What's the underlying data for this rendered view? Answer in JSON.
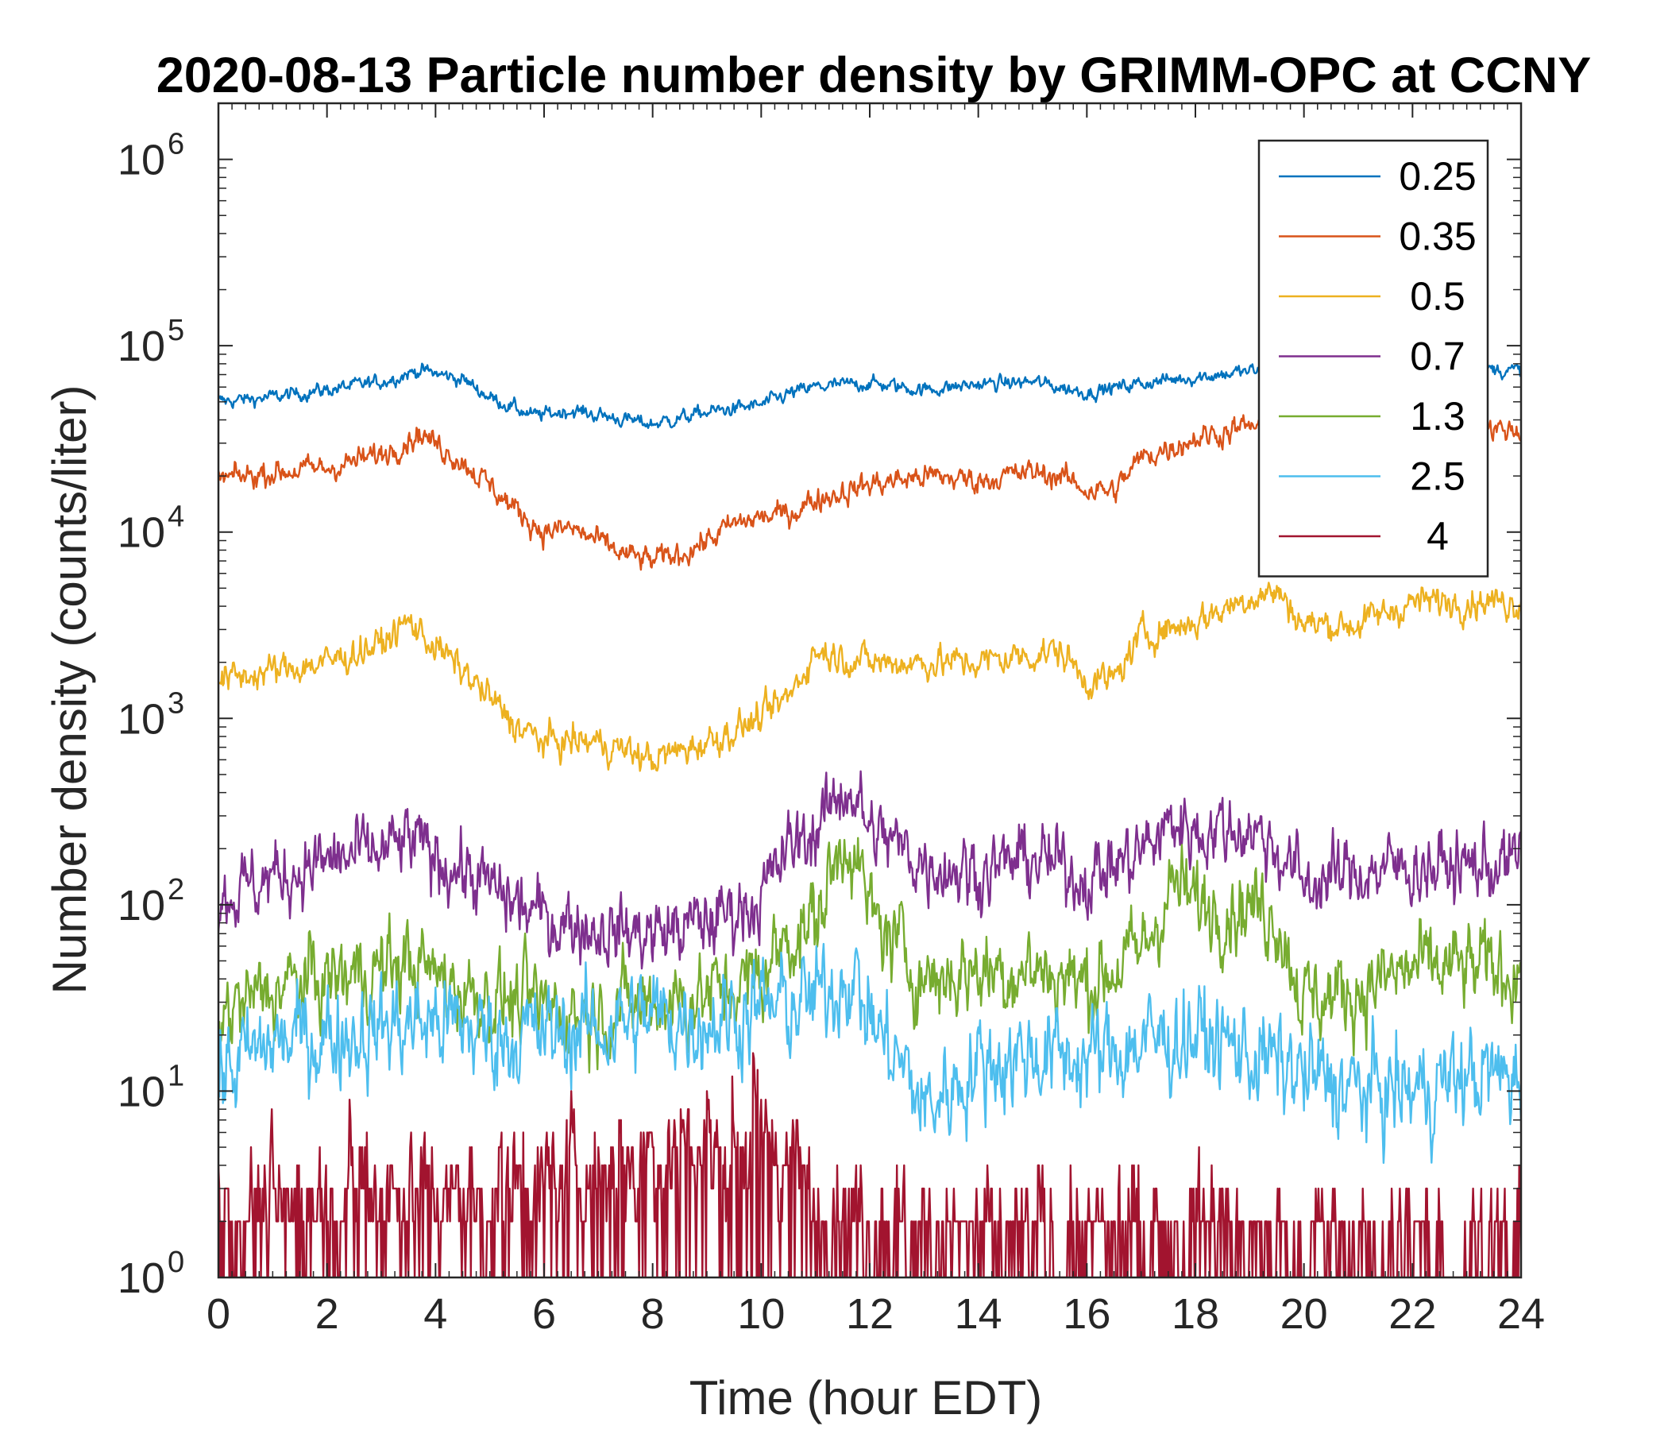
{
  "chart_data": {
    "type": "line",
    "title": "2020-08-13 Particle number density by GRIMM-OPC at CCNY",
    "xlabel": "Time (hour EDT)",
    "ylabel": "Number density (counts/liter)",
    "xlim": [
      0,
      24
    ],
    "ylim": [
      1,
      2000000
    ],
    "yscale": "log",
    "grid": false,
    "legend_position": "top-right",
    "x_ticks": [
      0,
      2,
      4,
      6,
      8,
      10,
      12,
      14,
      16,
      18,
      20,
      22,
      24
    ],
    "x_tick_labels": [
      "0",
      "2",
      "4",
      "6",
      "8",
      "10",
      "12",
      "14",
      "16",
      "18",
      "20",
      "22",
      "24"
    ],
    "y_ticks": [
      1,
      10,
      100,
      1000,
      10000,
      100000,
      1000000
    ],
    "y_tick_labels": [
      {
        "base": "10",
        "exp": "0"
      },
      {
        "base": "10",
        "exp": "1"
      },
      {
        "base": "10",
        "exp": "2"
      },
      {
        "base": "10",
        "exp": "3"
      },
      {
        "base": "10",
        "exp": "4"
      },
      {
        "base": "10",
        "exp": "5"
      },
      {
        "base": "10",
        "exp": "6"
      }
    ],
    "series": [
      {
        "name": "0.25",
        "color": "#0072BD",
        "noise": 0.04,
        "x": [
          0,
          1,
          2,
          3,
          3.7,
          4.5,
          5,
          5.8,
          6.5,
          7.5,
          8,
          9,
          10,
          10.5,
          11,
          12,
          13,
          14,
          15,
          16,
          17,
          18,
          19,
          20,
          21,
          22,
          23,
          24
        ],
        "y": [
          50000,
          53000,
          58000,
          64000,
          74000,
          66000,
          53000,
          42000,
          45000,
          40000,
          38000,
          44000,
          48000,
          55000,
          60000,
          63000,
          58000,
          62000,
          64000,
          56000,
          63000,
          68000,
          73000,
          76000,
          74000,
          78000,
          76000,
          73000
        ]
      },
      {
        "name": "0.35",
        "color": "#D95319",
        "noise": 0.07,
        "x": [
          0,
          1,
          2,
          3,
          3.7,
          4.5,
          5.5,
          6,
          6.5,
          7.5,
          8,
          8.5,
          9,
          9.5,
          10,
          10.5,
          11,
          12,
          13,
          14,
          15,
          15.5,
          16,
          16.5,
          17,
          18,
          19,
          20,
          21,
          22,
          23,
          24
        ],
        "y": [
          19000,
          21000,
          22000,
          26000,
          34000,
          24000,
          13000,
          10000,
          10500,
          7500,
          7000,
          7600,
          9000,
          11000,
          12000,
          12500,
          15000,
          18000,
          20000,
          19000,
          21000,
          20000,
          17000,
          16500,
          25000,
          32000,
          37000,
          38000,
          37000,
          38000,
          37000,
          35000
        ]
      },
      {
        "name": "0.5",
        "color": "#EDB120",
        "noise": 0.09,
        "x": [
          0,
          1,
          2,
          3,
          3.5,
          4.5,
          5.5,
          6,
          7,
          8,
          9,
          10,
          10.5,
          11,
          12,
          13,
          14,
          15,
          15.5,
          16,
          16.5,
          17,
          18,
          19,
          19.5,
          20,
          21,
          22,
          23,
          24
        ],
        "y": [
          1600,
          1800,
          2000,
          2500,
          3300,
          1800,
          900,
          750,
          750,
          600,
          750,
          1000,
          1300,
          2300,
          2000,
          2000,
          2000,
          2200,
          2300,
          1600,
          1600,
          2800,
          3300,
          4500,
          4800,
          3200,
          3200,
          4200,
          4300,
          4200
        ]
      },
      {
        "name": "0.7",
        "color": "#7E2F8E",
        "noise": 0.2,
        "x": [
          0,
          1,
          2,
          3,
          3.5,
          4.5,
          5.5,
          6,
          7,
          8,
          9,
          10,
          10.5,
          11,
          11.6,
          12,
          13,
          14,
          15,
          16,
          17,
          17.6,
          18,
          19,
          19.5,
          20,
          21,
          22,
          23,
          24
        ],
        "y": [
          110,
          140,
          170,
          190,
          220,
          150,
          100,
          85,
          75,
          70,
          80,
          110,
          200,
          250,
          450,
          250,
          170,
          150,
          180,
          140,
          190,
          280,
          250,
          260,
          200,
          130,
          150,
          160,
          160,
          170
        ]
      },
      {
        "name": "1.3",
        "color": "#77AC30",
        "noise": 0.24,
        "x": [
          0,
          1,
          2,
          3,
          3.5,
          4.5,
          5.5,
          6,
          7,
          8,
          9,
          10,
          10.5,
          11,
          11.6,
          12,
          13,
          14,
          15,
          16,
          17,
          17.6,
          18,
          19,
          19.5,
          20,
          21,
          22,
          23,
          24
        ],
        "y": [
          25,
          35,
          40,
          45,
          50,
          35,
          30,
          28,
          27,
          30,
          33,
          40,
          70,
          80,
          250,
          90,
          40,
          45,
          45,
          38,
          55,
          130,
          100,
          100,
          90,
          30,
          35,
          45,
          45,
          45
        ]
      },
      {
        "name": "2.5",
        "color": "#4DBEEE",
        "noise": 0.28,
        "x": [
          0,
          1,
          2,
          3,
          4,
          5,
          6,
          7,
          8,
          9,
          10,
          11,
          11.6,
          12,
          12.7,
          13,
          14,
          15,
          16,
          17,
          18,
          19,
          20,
          21,
          22,
          23,
          24
        ],
        "y": [
          12,
          18,
          20,
          22,
          24,
          20,
          20,
          22,
          25,
          24,
          28,
          30,
          45,
          25,
          12,
          8,
          14,
          16,
          15,
          18,
          20,
          16,
          12,
          10,
          10,
          12,
          12
        ]
      },
      {
        "name": "4",
        "color": "#A2142F",
        "noise": 0.35,
        "x": [
          0,
          2,
          4,
          5,
          6,
          7,
          8,
          9,
          10,
          10.5,
          11,
          12,
          13,
          14,
          16,
          18,
          20,
          22,
          24
        ],
        "y": [
          2.5,
          3,
          3,
          3,
          3.5,
          4,
          5,
          5.5,
          6,
          4,
          2.5,
          2.2,
          1.8,
          1.6,
          1.6,
          2,
          1.6,
          1.5,
          1.4
        ]
      }
    ]
  }
}
